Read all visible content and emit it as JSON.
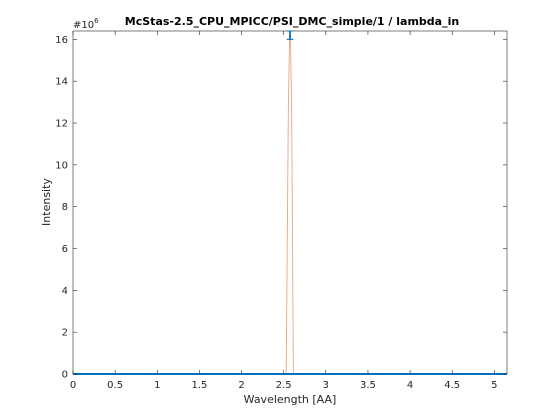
{
  "chart_data": {
    "type": "line",
    "title": "McStas-2.5_CPU_MPICC/PSI_DMC_simple/1 / lambda_in",
    "xlabel": "Wavelength [AA]",
    "ylabel": "Intensity",
    "y_multiplier_label": "#10",
    "y_multiplier_exponent": "6",
    "xlim": [
      0,
      5.15
    ],
    "ylim": [
      0,
      16.4
    ],
    "y_scale": 1000000,
    "x_ticks": [
      0,
      0.5,
      1,
      1.5,
      2,
      2.5,
      3,
      3.5,
      4,
      4.5,
      5
    ],
    "x_tick_labels": [
      "0",
      "0.5",
      "1",
      "1.5",
      "2",
      "2.5",
      "3",
      "3.5",
      "4",
      "4.5",
      "5"
    ],
    "y_ticks": [
      0,
      2,
      4,
      6,
      8,
      10,
      12,
      14,
      16
    ],
    "y_tick_labels": [
      "0",
      "2",
      "4",
      "6",
      "8",
      "10",
      "12",
      "14",
      "16"
    ],
    "grid": false,
    "series": [
      {
        "color": "#e8a588",
        "x": [
          0,
          2.5,
          2.53,
          2.555,
          2.57,
          2.58,
          2.595,
          2.615,
          2.64,
          5.15
        ],
        "y": [
          0,
          0,
          0,
          12.5,
          16.2,
          16.2,
          12.5,
          0,
          0,
          0
        ]
      },
      {
        "color": "#0072bd",
        "x": [
          0,
          5.15
        ],
        "y": [
          0,
          0
        ]
      }
    ],
    "error_bars": [
      {
        "x": 2.57,
        "y": 16.2,
        "err": 0.15
      },
      {
        "x": 2.58,
        "y": 16.2,
        "err": 0.15
      }
    ],
    "error_color": "#0072bd"
  }
}
